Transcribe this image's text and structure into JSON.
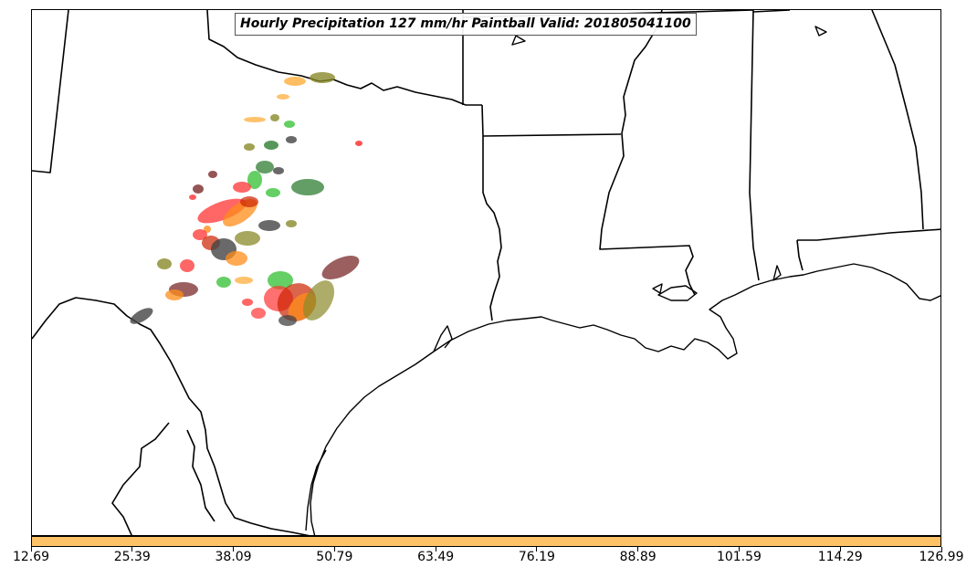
{
  "title": "Hourly Precipitation 127 mm/hr Paintball Valid: 201805041100",
  "colorbar": {
    "color": "#ffc266",
    "tick_labels": [
      "12.69",
      "25.39",
      "38.09",
      "50.79",
      "63.49",
      "76.19",
      "88.89",
      "101.59",
      "114.29",
      "126.99"
    ]
  },
  "colors": {
    "borders": "#000000",
    "paint_orange": "#ff8c1a",
    "paint_light_orange": "#ffb347",
    "paint_red": "#ff3333",
    "paint_dark_red": "#cc2200",
    "paint_green": "#22bb22",
    "paint_dark_green": "#2e7d32",
    "paint_olive": "#8a8a2a",
    "paint_gray": "#444444",
    "paint_maroon": "#7a2a2a"
  },
  "layers": [
    "state-borders",
    "coastline",
    "precipitation-paintball"
  ]
}
